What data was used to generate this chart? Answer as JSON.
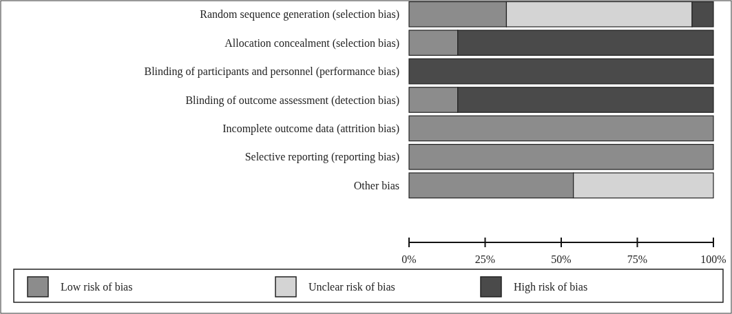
{
  "chart_data": {
    "type": "bar",
    "orientation": "horizontal",
    "stacked": true,
    "categories": [
      "Random sequence generation (selection bias)",
      "Allocation concealment (selection bias)",
      "Blinding of participants and personnel (performance bias)",
      "Blinding of outcome assessment (detection bias)",
      "Incomplete outcome data (attrition bias)",
      "Selective reporting (reporting bias)",
      "Other bias"
    ],
    "series": [
      {
        "name": "Low risk of bias",
        "color": "#8c8c8c",
        "values": [
          32,
          16,
          0,
          16,
          100,
          100,
          54
        ]
      },
      {
        "name": "Unclear risk of bias",
        "color": "#d4d4d4",
        "values": [
          61,
          0,
          0,
          0,
          0,
          0,
          46
        ]
      },
      {
        "name": "High risk of bias",
        "color": "#4a4a4a",
        "values": [
          7,
          84,
          100,
          84,
          0,
          0,
          0
        ]
      }
    ],
    "xlim": [
      0,
      100
    ],
    "xticks": [
      {
        "value": 0,
        "label": "0%"
      },
      {
        "value": 25,
        "label": "25%"
      },
      {
        "value": 50,
        "label": "50%"
      },
      {
        "value": 75,
        "label": "75%"
      },
      {
        "value": 100,
        "label": "100%"
      }
    ],
    "legend": "bottom",
    "grid": false
  }
}
